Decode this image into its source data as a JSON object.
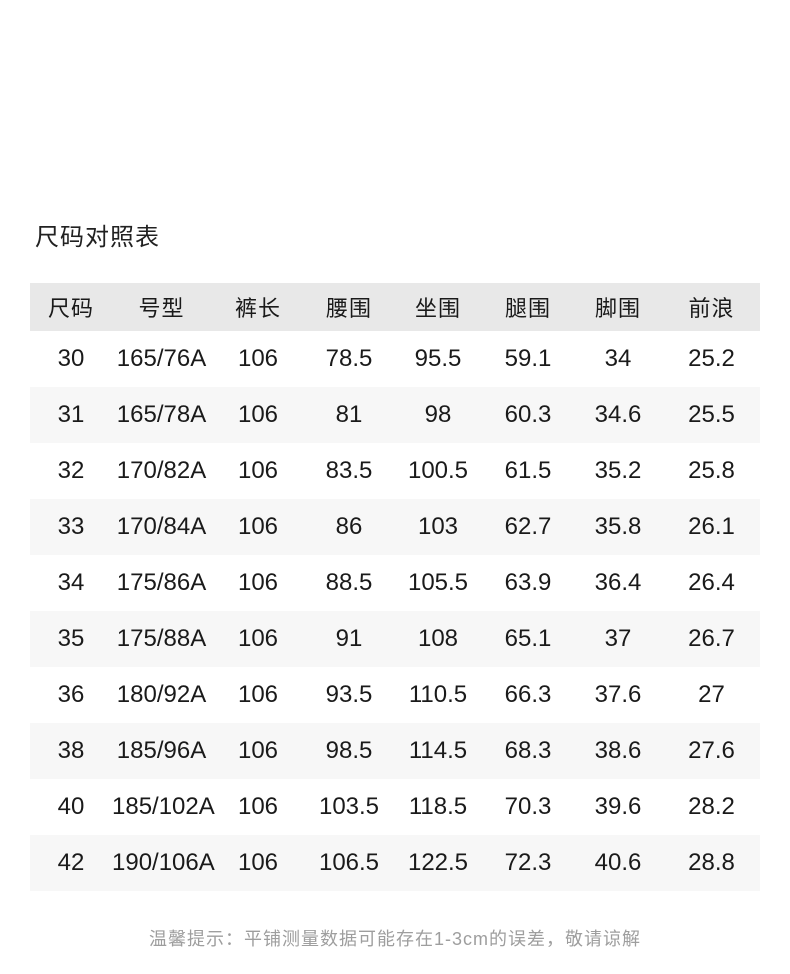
{
  "title": "尺码对照表",
  "table": {
    "headers": [
      "尺码",
      "号型",
      "裤长",
      "腰围",
      "坐围",
      "腿围",
      "脚围",
      "前浪"
    ],
    "rows": [
      [
        "30",
        "165/76A",
        "106",
        "78.5",
        "95.5",
        "59.1",
        "34",
        "25.2"
      ],
      [
        "31",
        "165/78A",
        "106",
        "81",
        "98",
        "60.3",
        "34.6",
        "25.5"
      ],
      [
        "32",
        "170/82A",
        "106",
        "83.5",
        "100.5",
        "61.5",
        "35.2",
        "25.8"
      ],
      [
        "33",
        "170/84A",
        "106",
        "86",
        "103",
        "62.7",
        "35.8",
        "26.1"
      ],
      [
        "34",
        "175/86A",
        "106",
        "88.5",
        "105.5",
        "63.9",
        "36.4",
        "26.4"
      ],
      [
        "35",
        "175/88A",
        "106",
        "91",
        "108",
        "65.1",
        "37",
        "26.7"
      ],
      [
        "36",
        "180/92A",
        "106",
        "93.5",
        "110.5",
        "66.3",
        "37.6",
        "27"
      ],
      [
        "38",
        "185/96A",
        "106",
        "98.5",
        "114.5",
        "68.3",
        "38.6",
        "27.6"
      ],
      [
        "40",
        "185/102A",
        "106",
        "103.5",
        "118.5",
        "70.3",
        "39.6",
        "28.2"
      ],
      [
        "42",
        "190/106A",
        "106",
        "106.5",
        "122.5",
        "72.3",
        "40.6",
        "28.8"
      ]
    ]
  },
  "footer": {
    "note": "温馨提示：平铺测量数据可能存在1-3cm的误差，敬请谅解"
  },
  "colors": {
    "header_bg": "#e8e8e8",
    "stripe_bg": "#f7f7f7",
    "text": "#1a1a1a",
    "muted_text": "#9e9e9e",
    "background": "#ffffff"
  }
}
